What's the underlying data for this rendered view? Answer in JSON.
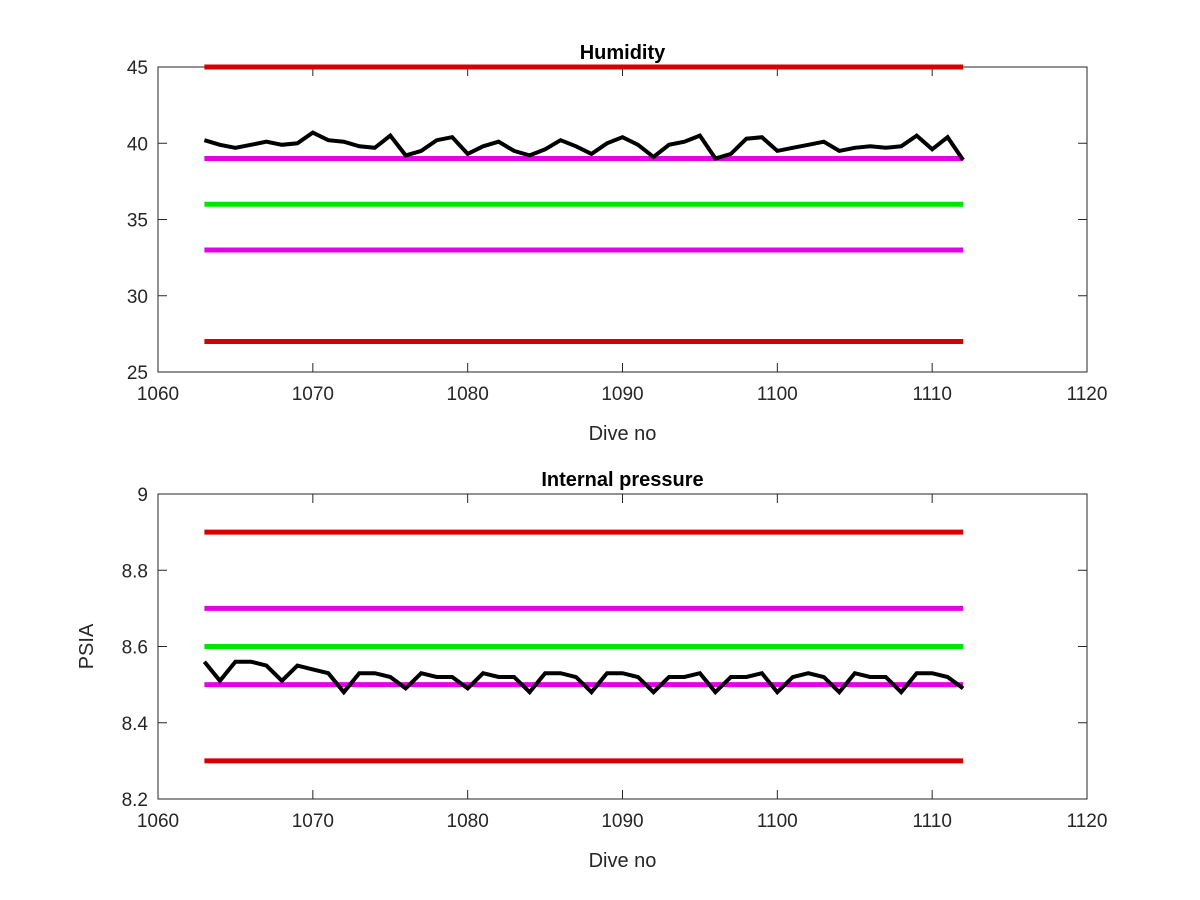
{
  "chart_data": [
    {
      "type": "line",
      "title": "Humidity",
      "xlabel": "Dive no",
      "ylabel": "",
      "xlim": [
        1060,
        1120
      ],
      "ylim": [
        25,
        45
      ],
      "xticks": [
        1060,
        1070,
        1080,
        1090,
        1100,
        1110,
        1120
      ],
      "yticks": [
        25,
        30,
        35,
        40,
        45
      ],
      "grid": false,
      "series": [
        {
          "kind": "threshold",
          "color": "#d40000",
          "x": [
            1063,
            1112
          ],
          "y": [
            45,
            45
          ]
        },
        {
          "kind": "threshold",
          "color": "#e600e6",
          "x": [
            1063,
            1112
          ],
          "y": [
            39,
            39
          ]
        },
        {
          "kind": "threshold",
          "color": "#00e600",
          "x": [
            1063,
            1112
          ],
          "y": [
            36,
            36
          ]
        },
        {
          "kind": "threshold",
          "color": "#e600e6",
          "x": [
            1063,
            1112
          ],
          "y": [
            33,
            33
          ]
        },
        {
          "kind": "threshold",
          "color": "#d40000",
          "x": [
            1063,
            1112
          ],
          "y": [
            27,
            27
          ]
        },
        {
          "kind": "data",
          "color": "#000000",
          "x": [
            1063,
            1064,
            1065,
            1066,
            1067,
            1068,
            1069,
            1070,
            1071,
            1072,
            1073,
            1074,
            1075,
            1076,
            1077,
            1078,
            1079,
            1080,
            1081,
            1082,
            1083,
            1084,
            1085,
            1086,
            1087,
            1088,
            1089,
            1090,
            1091,
            1092,
            1093,
            1094,
            1095,
            1096,
            1097,
            1098,
            1099,
            1100,
            1101,
            1102,
            1103,
            1104,
            1105,
            1106,
            1107,
            1108,
            1109,
            1110,
            1111,
            1112
          ],
          "y": [
            40.2,
            39.9,
            39.7,
            39.9,
            40.1,
            39.9,
            40.0,
            40.7,
            40.2,
            40.1,
            39.8,
            39.7,
            40.5,
            39.2,
            39.5,
            40.2,
            40.4,
            39.3,
            39.8,
            40.1,
            39.5,
            39.2,
            39.6,
            40.2,
            39.8,
            39.3,
            40.0,
            40.4,
            39.9,
            39.1,
            39.9,
            40.1,
            40.5,
            39.0,
            39.3,
            40.3,
            40.4,
            39.5,
            39.7,
            39.9,
            40.1,
            39.5,
            39.7,
            39.8,
            39.7,
            39.8,
            40.5,
            39.6,
            40.4,
            38.9
          ]
        }
      ]
    },
    {
      "type": "line",
      "title": "Internal pressure",
      "xlabel": "Dive no",
      "ylabel": "PSIA",
      "xlim": [
        1060,
        1120
      ],
      "ylim": [
        8.2,
        9
      ],
      "xticks": [
        1060,
        1070,
        1080,
        1090,
        1100,
        1110,
        1120
      ],
      "yticks": [
        8.2,
        8.4,
        8.6,
        8.8,
        9
      ],
      "grid": false,
      "series": [
        {
          "kind": "threshold",
          "color": "#d40000",
          "x": [
            1063,
            1112
          ],
          "y": [
            8.9,
            8.9
          ]
        },
        {
          "kind": "threshold",
          "color": "#e600e6",
          "x": [
            1063,
            1112
          ],
          "y": [
            8.7,
            8.7
          ]
        },
        {
          "kind": "threshold",
          "color": "#00e600",
          "x": [
            1063,
            1112
          ],
          "y": [
            8.6,
            8.6
          ]
        },
        {
          "kind": "threshold",
          "color": "#e600e6",
          "x": [
            1063,
            1112
          ],
          "y": [
            8.5,
            8.5
          ]
        },
        {
          "kind": "threshold",
          "color": "#d40000",
          "x": [
            1063,
            1112
          ],
          "y": [
            8.3,
            8.3
          ]
        },
        {
          "kind": "data",
          "color": "#000000",
          "x": [
            1063,
            1064,
            1065,
            1066,
            1067,
            1068,
            1069,
            1070,
            1071,
            1072,
            1073,
            1074,
            1075,
            1076,
            1077,
            1078,
            1079,
            1080,
            1081,
            1082,
            1083,
            1084,
            1085,
            1086,
            1087,
            1088,
            1089,
            1090,
            1091,
            1092,
            1093,
            1094,
            1095,
            1096,
            1097,
            1098,
            1099,
            1100,
            1101,
            1102,
            1103,
            1104,
            1105,
            1106,
            1107,
            1108,
            1109,
            1110,
            1111,
            1112
          ],
          "y": [
            8.56,
            8.51,
            8.56,
            8.56,
            8.55,
            8.51,
            8.55,
            8.54,
            8.53,
            8.48,
            8.53,
            8.53,
            8.52,
            8.49,
            8.53,
            8.52,
            8.52,
            8.49,
            8.53,
            8.52,
            8.52,
            8.48,
            8.53,
            8.53,
            8.52,
            8.48,
            8.53,
            8.53,
            8.52,
            8.48,
            8.52,
            8.52,
            8.53,
            8.48,
            8.52,
            8.52,
            8.53,
            8.48,
            8.52,
            8.53,
            8.52,
            8.48,
            8.53,
            8.52,
            8.52,
            8.48,
            8.53,
            8.53,
            8.52,
            8.49
          ]
        }
      ]
    }
  ]
}
